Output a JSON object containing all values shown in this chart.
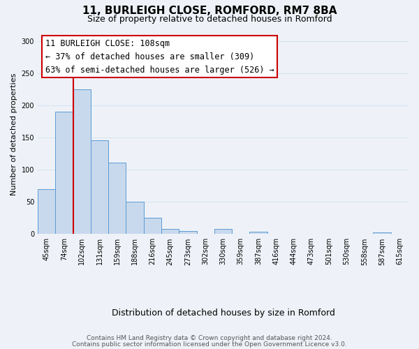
{
  "title": "11, BURLEIGH CLOSE, ROMFORD, RM7 8BA",
  "subtitle": "Size of property relative to detached houses in Romford",
  "xlabel": "Distribution of detached houses by size in Romford",
  "ylabel": "Number of detached properties",
  "bar_color": "#c8d9ed",
  "bar_edge_color": "#5b9bd5",
  "categories": [
    "45sqm",
    "74sqm",
    "102sqm",
    "131sqm",
    "159sqm",
    "188sqm",
    "216sqm",
    "245sqm",
    "273sqm",
    "302sqm",
    "330sqm",
    "359sqm",
    "387sqm",
    "416sqm",
    "444sqm",
    "473sqm",
    "501sqm",
    "530sqm",
    "558sqm",
    "587sqm",
    "615sqm"
  ],
  "values": [
    70,
    190,
    225,
    146,
    111,
    50,
    25,
    8,
    5,
    0,
    8,
    0,
    4,
    0,
    0,
    0,
    0,
    0,
    0,
    2,
    0
  ],
  "ylim": [
    0,
    310
  ],
  "yticks": [
    0,
    50,
    100,
    150,
    200,
    250,
    300
  ],
  "vline_x_index": 2,
  "vline_color": "#cc0000",
  "annotation_title": "11 BURLEIGH CLOSE: 108sqm",
  "annotation_line1": "← 37% of detached houses are smaller (309)",
  "annotation_line2": "63% of semi-detached houses are larger (526) →",
  "annotation_box_color": "#ffffff",
  "annotation_box_edge": "#cc0000",
  "footer_line1": "Contains HM Land Registry data © Crown copyright and database right 2024.",
  "footer_line2": "Contains public sector information licensed under the Open Government Licence v3.0.",
  "background_color": "#eef2f8",
  "grid_color": "#d8e4f0"
}
